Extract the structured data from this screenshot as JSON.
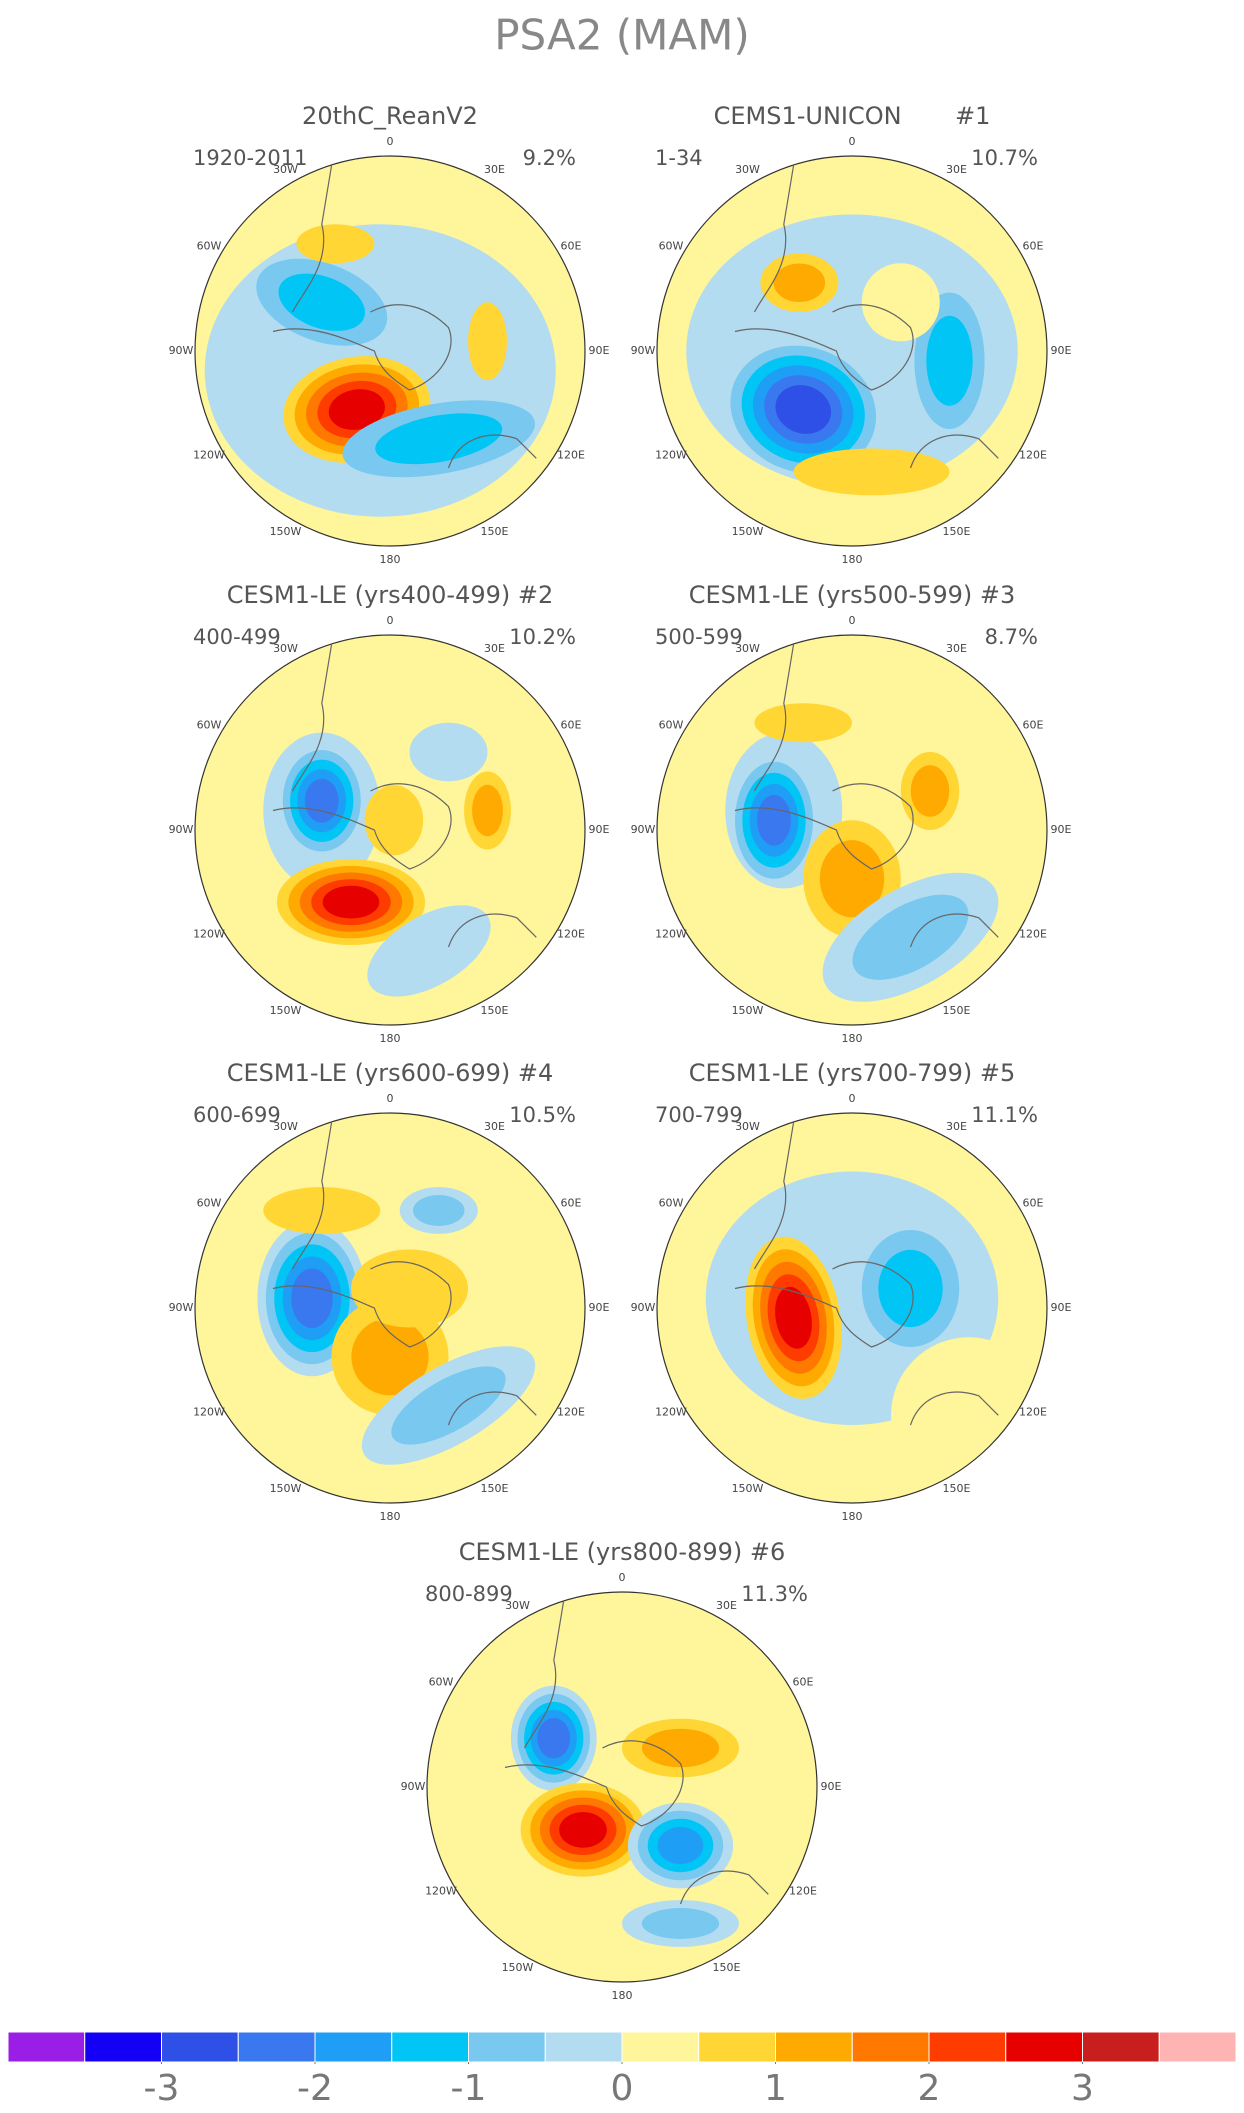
{
  "title": "PSA2 (MAM)",
  "panels": [
    {
      "title": "20thC_ReanV2",
      "period": "1920-2011",
      "variance": "9.2%"
    },
    {
      "title": "CEMS1-UNICON       #1",
      "period": "1-34",
      "variance": "10.7%"
    },
    {
      "title": "CESM1-LE (yrs400-499) #2",
      "period": "400-499",
      "variance": "10.2%"
    },
    {
      "title": "CESM1-LE (yrs500-599) #3",
      "period": "500-599",
      "variance": "8.7%"
    },
    {
      "title": "CESM1-LE (yrs600-699) #4",
      "period": "600-699",
      "variance": "10.5%"
    },
    {
      "title": "CESM1-LE (yrs700-799) #5",
      "period": "700-799",
      "variance": "11.1%"
    },
    {
      "title": "CESM1-LE (yrs800-899) #6",
      "period": "800-899",
      "variance": "11.3%"
    }
  ],
  "longitude_labels": [
    "0",
    "30E",
    "60E",
    "90E",
    "120E",
    "150E",
    "180",
    "150W",
    "120W",
    "90W",
    "60W",
    "30W"
  ],
  "colorbar": {
    "colors": [
      "#9a1ee6",
      "#1400f5",
      "#2f50e6",
      "#3a78f0",
      "#1e9ef5",
      "#00c5f5",
      "#78c8f0",
      "#b4dcf0",
      "#fff59a",
      "#ffd633",
      "#ffaa00",
      "#ff7800",
      "#ff3c00",
      "#e60000",
      "#c81e1e",
      "#ffb4b4"
    ],
    "ticks": [
      -3,
      -2,
      -1,
      0,
      1,
      2,
      3
    ],
    "lim": [
      -4,
      4
    ]
  }
}
